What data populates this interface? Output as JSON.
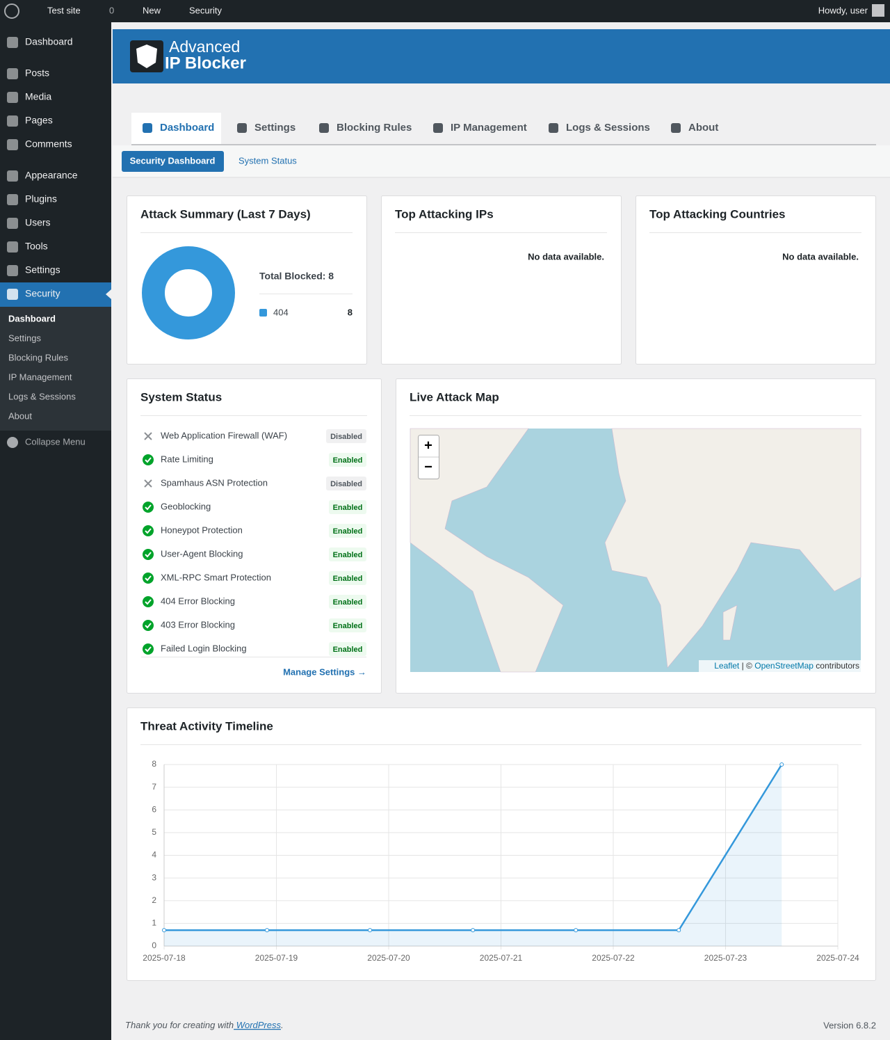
{
  "admin_bar": {
    "site": "Test site",
    "comments": "0",
    "new": "New",
    "security": "Security",
    "howdy": "Howdy, user"
  },
  "menu": {
    "items": [
      "Dashboard",
      "Posts",
      "Media",
      "Pages",
      "Comments",
      "Appearance",
      "Plugins",
      "Users",
      "Tools",
      "Settings",
      "Security"
    ],
    "submenu": [
      "Dashboard",
      "Settings",
      "Blocking Rules",
      "IP Management",
      "Logs & Sessions",
      "About"
    ],
    "collapse": "Collapse Menu"
  },
  "header": {
    "logo_line1": "Advanced",
    "logo_line2": "IP Blocker"
  },
  "tabs": [
    "Dashboard",
    "Settings",
    "Blocking Rules",
    "IP Management",
    "Logs & Sessions",
    "About"
  ],
  "subtabs": [
    "Security Dashboard",
    "System Status"
  ],
  "attack_summary": {
    "title": "Attack Summary (Last 7 Days)",
    "total": "Total Blocked: 8",
    "chart": {
      "type": "pie",
      "categories": [
        "404"
      ],
      "values": [
        8
      ],
      "color": "#3498db"
    }
  },
  "top_ips": {
    "title": "Top Attacking IPs",
    "empty": "No data available."
  },
  "top_countries": {
    "title": "Top Attacking Countries",
    "empty": "No data available."
  },
  "system_status": {
    "title": "System Status",
    "items": [
      {
        "label": "Web Application Firewall (WAF)",
        "status": "Disabled",
        "enabled": false
      },
      {
        "label": "Rate Limiting",
        "status": "Enabled",
        "enabled": true
      },
      {
        "label": "Spamhaus ASN Protection",
        "status": "Disabled",
        "enabled": false
      },
      {
        "label": "Geoblocking",
        "status": "Enabled",
        "enabled": true
      },
      {
        "label": "Honeypot Protection",
        "status": "Enabled",
        "enabled": true
      },
      {
        "label": "User-Agent Blocking",
        "status": "Enabled",
        "enabled": true
      },
      {
        "label": "XML-RPC Smart Protection",
        "status": "Enabled",
        "enabled": true
      },
      {
        "label": "404 Error Blocking",
        "status": "Enabled",
        "enabled": true
      },
      {
        "label": "403 Error Blocking",
        "status": "Enabled",
        "enabled": true
      },
      {
        "label": "Failed Login Blocking",
        "status": "Enabled",
        "enabled": true
      }
    ],
    "link": "Manage Settings →"
  },
  "map": {
    "title": "Live Attack Map",
    "zoom_in": "+",
    "zoom_out": "−",
    "attribution": [
      "Leaflet",
      "| ©",
      "OpenStreetMap",
      "contributors"
    ]
  },
  "timeline": {
    "title": "Threat Activity Timeline",
    "chart": {
      "type": "line",
      "x": [
        "2025-07-18T00:00",
        "2025-07-18T22:00",
        "2025-07-19T20:00",
        "2025-07-20T18:00",
        "2025-07-21T16:00",
        "2025-07-22T14:00",
        "2025-07-23T12:00"
      ],
      "values": [
        0.7,
        0.7,
        0.7,
        0.7,
        0.7,
        0.7,
        8
      ],
      "xlim": [
        "2025-07-18",
        "2025-07-24"
      ],
      "xticks": [
        "2025-07-18",
        "2025-07-19",
        "2025-07-20",
        "2025-07-21",
        "2025-07-22",
        "2025-07-23",
        "2025-07-24"
      ],
      "ylim": [
        0,
        8
      ],
      "yticks": [
        0,
        1,
        2,
        3,
        4,
        5,
        6,
        7,
        8
      ],
      "color": "#3498db",
      "grid": true
    }
  },
  "footer": {
    "thanks": "Thank you for creating with",
    "link": "WordPress",
    "period": ".",
    "version": "Version 6.8.2"
  }
}
